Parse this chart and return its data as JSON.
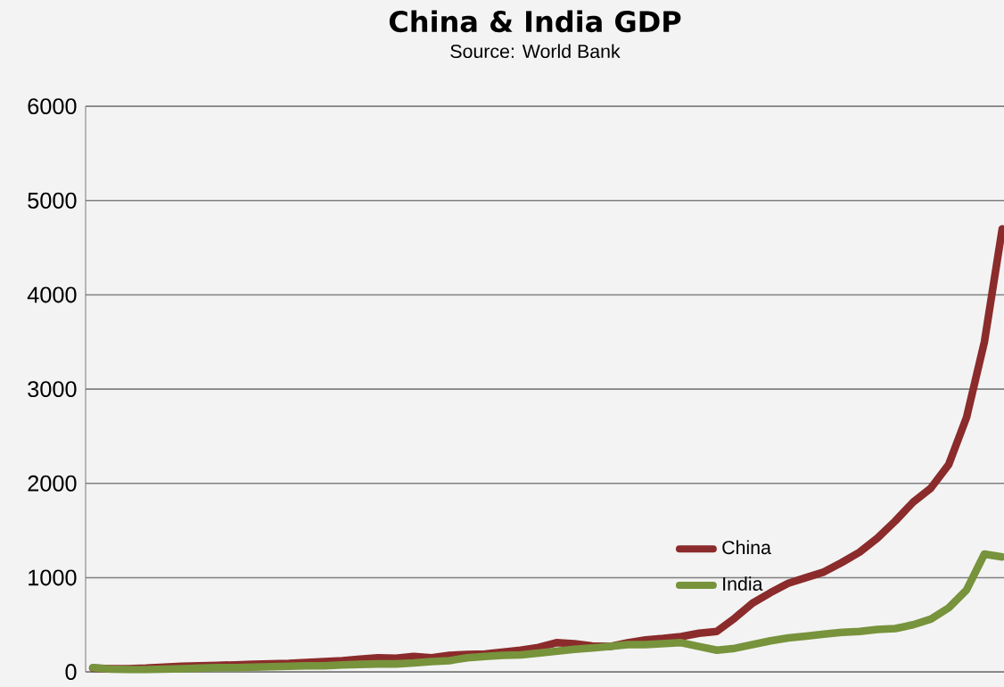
{
  "chart_data": {
    "type": "line",
    "title": "China & India GDP",
    "subtitle": "Source: World Bank",
    "categories": [
      null,
      null,
      null,
      null,
      null,
      null,
      null,
      null,
      null,
      null,
      null,
      null,
      null,
      null,
      null,
      null,
      null,
      null,
      null,
      null,
      null,
      null,
      null,
      null,
      null,
      null,
      null,
      null,
      null,
      null,
      null,
      null,
      null,
      null,
      null,
      null,
      null,
      null,
      null,
      null,
      null,
      null,
      null,
      null,
      null,
      null,
      null,
      null,
      null,
      null,
      null,
      null
    ],
    "series": [
      {
        "name": "China",
        "color": "#8b2b2b",
        "values": [
          40,
          35,
          35,
          40,
          50,
          60,
          65,
          70,
          75,
          80,
          85,
          90,
          100,
          110,
          120,
          135,
          150,
          145,
          165,
          150,
          175,
          185,
          190,
          210,
          230,
          260,
          310,
          300,
          275,
          270,
          310,
          340,
          355,
          375,
          410,
          430,
          570,
          730,
          840,
          940,
          1000,
          1060,
          1160,
          1270,
          1420,
          1600,
          1800,
          1950,
          2200,
          2700,
          3500,
          4700
        ]
      },
      {
        "name": "India",
        "color": "#77933c",
        "values": [
          45,
          30,
          25,
          25,
          30,
          35,
          40,
          45,
          45,
          50,
          55,
          60,
          65,
          65,
          75,
          80,
          85,
          85,
          95,
          110,
          120,
          150,
          165,
          175,
          180,
          200,
          220,
          240,
          255,
          270,
          290,
          290,
          300,
          310,
          270,
          230,
          250,
          290,
          330,
          360,
          380,
          400,
          420,
          430,
          450,
          460,
          500,
          560,
          680,
          870,
          1250,
          1220
        ]
      }
    ],
    "ylim": [
      0,
      6000
    ],
    "yticks": [
      0,
      1000,
      2000,
      3000,
      4000,
      5000,
      6000
    ],
    "grid": "y",
    "legend": "bottom right",
    "tick_labels": "y",
    "line_style": "solid",
    "marker": "none"
  }
}
